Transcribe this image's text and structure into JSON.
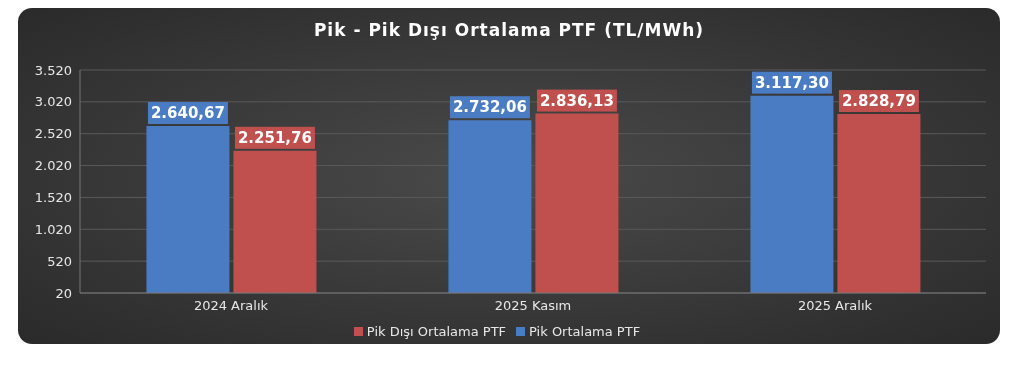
{
  "chart_data": {
    "type": "bar",
    "title": "Pik - Pik Dışı Ortalama PTF (TL/MWh)",
    "categories": [
      "2024 Aralık",
      "2025 Kasım",
      "2025 Aralık"
    ],
    "series": [
      {
        "name": "Pik Ortalama PTF",
        "color": "#4a7cc4",
        "values": [
          2640.67,
          2732.06,
          3117.3
        ],
        "value_labels": [
          "2.640,67",
          "2.732,06",
          "3.117,30"
        ]
      },
      {
        "name": "Pik Dışı Ortalama PTF",
        "color": "#c0504d",
        "values": [
          2251.76,
          2836.13,
          2828.79
        ],
        "value_labels": [
          "2.251,76",
          "2.836,13",
          "2.828,79"
        ]
      }
    ],
    "ylim": [
      20,
      3520
    ],
    "yticks": [
      {
        "value": 20,
        "label": "20"
      },
      {
        "value": 520,
        "label": "520"
      },
      {
        "value": 1020,
        "label": "1.020"
      },
      {
        "value": 1520,
        "label": "1.520"
      },
      {
        "value": 2020,
        "label": "2.020"
      },
      {
        "value": 2520,
        "label": "2.520"
      },
      {
        "value": 3020,
        "label": "3.020"
      },
      {
        "value": 3520,
        "label": "3.520"
      }
    ],
    "grid": "y",
    "legend": "bottom"
  }
}
